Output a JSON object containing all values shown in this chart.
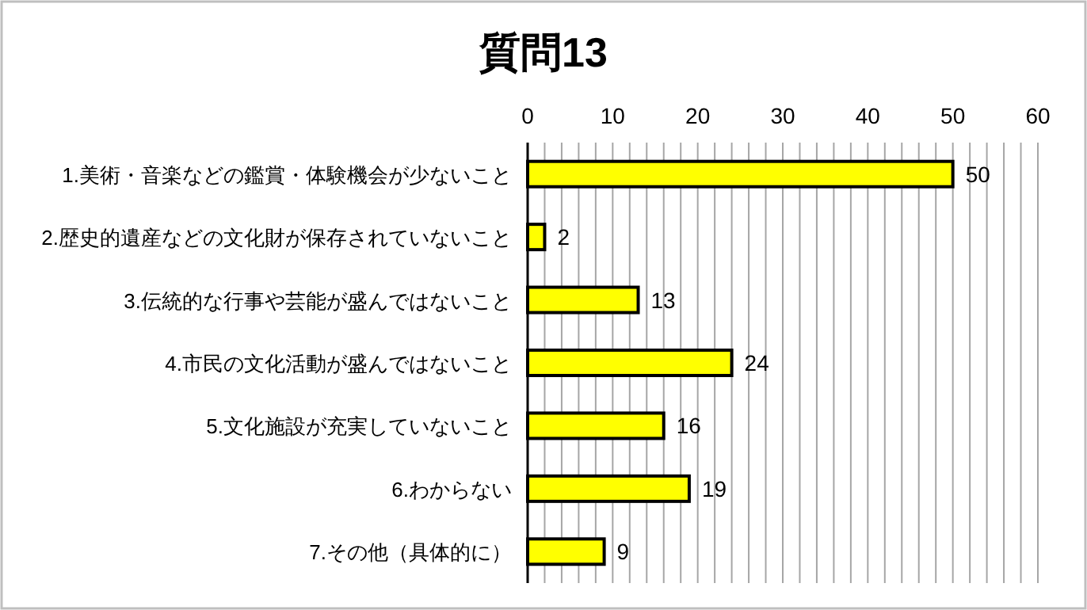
{
  "chart_data": {
    "type": "bar",
    "orientation": "horizontal",
    "title": "質問13",
    "categories": [
      "1.美術・音楽などの鑑賞・体験機会が少ないこと",
      "2.歴史的遺産などの文化財が保存されていないこと",
      "3.伝統的な行事や芸能が盛んではないこと",
      "4.市民の文化活動が盛んではないこと",
      "5.文化施設が充実していないこと",
      "6.わからない",
      "7.その他（具体的に）"
    ],
    "values": [
      50,
      2,
      13,
      24,
      16,
      19,
      9
    ],
    "color": "#ffff00",
    "xlim": [
      0,
      60
    ],
    "xticks": [
      0,
      {
        "value": 2,
        "label": null
      },
      {
        "value": 4,
        "label": null
      },
      {
        "value": 6,
        "label": null
      },
      {
        "value": 8,
        "label": null
      },
      10,
      {
        "value": 12,
        "label": null
      },
      {
        "value": 14,
        "label": null
      },
      {
        "value": 16,
        "label": null
      },
      {
        "value": 18,
        "label": null
      },
      20,
      {
        "value": 22,
        "label": null
      },
      {
        "value": 24,
        "label": null
      },
      {
        "value": 26,
        "label": null
      },
      {
        "value": 28,
        "label": null
      },
      30,
      {
        "value": 32,
        "label": null
      },
      {
        "value": 34,
        "label": null
      },
      {
        "value": 36,
        "label": null
      },
      {
        "value": 38,
        "label": null
      },
      40,
      {
        "value": 42,
        "label": null
      },
      {
        "value": 44,
        "label": null
      },
      {
        "value": 46,
        "label": null
      },
      {
        "value": 48,
        "label": null
      },
      50,
      {
        "value": 52,
        "label": null
      },
      {
        "value": 54,
        "label": null
      },
      {
        "value": 56,
        "label": null
      },
      {
        "value": 58,
        "label": null
      },
      60
    ],
    "grid": "x",
    "data_labels": true
  }
}
